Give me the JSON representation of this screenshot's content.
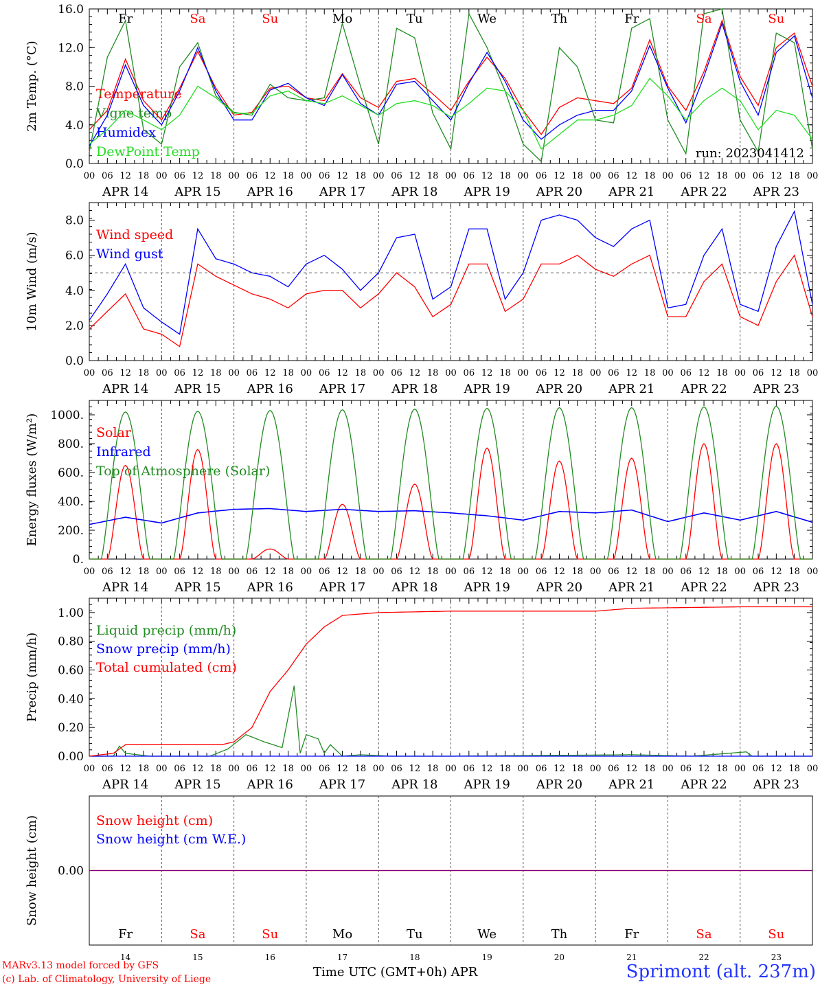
{
  "meteogram": {
    "day_names": [
      "Fr",
      "Sa",
      "Su",
      "Mo",
      "Tu",
      "We",
      "Th",
      "Fr",
      "Sa",
      "Su"
    ],
    "day_name_colors": [
      "#000000",
      "#ff0000",
      "#ff0000",
      "#000000",
      "#000000",
      "#000000",
      "#000000",
      "#000000",
      "#ff0000",
      "#ff0000"
    ],
    "date_labels": [
      "APR 14",
      "APR 15",
      "APR 16",
      "APR 17",
      "APR 18",
      "APR 19",
      "APR 20",
      "APR 21",
      "APR 22",
      "APR 23"
    ],
    "hour_labels": [
      "00",
      "06",
      "12",
      "18"
    ],
    "bottom_day_numbers": [
      "14",
      "15",
      "16",
      "17",
      "18",
      "19",
      "20",
      "21",
      "22",
      "23"
    ],
    "xlabel": "Time UTC (GMT+0h)",
    "xlabel_month": "APR",
    "credit_line_1": "MARv3.13 model forced by GFS",
    "credit_line_2": "(c) Lab. of Climatology, University of Liege",
    "station": "Sprimont (alt. 237m)",
    "colors": {
      "red": "#ff0000",
      "blue": "#0000ff",
      "green": "#228b22",
      "light_green": "#22dd22",
      "purple": "#800080",
      "grid": "#555555"
    }
  },
  "chart_data": [
    {
      "type": "line",
      "ylabel": "2m Temp. (°C)",
      "ylim": [
        0,
        16
      ],
      "yticks": [
        "0.0",
        "4.0",
        "8.0",
        "12.0",
        "16.0"
      ],
      "annotation": "run: 2023041412",
      "x_hours": [
        0,
        6,
        12,
        18,
        24,
        30,
        36,
        42,
        48,
        54,
        60,
        66,
        72,
        78,
        84,
        90,
        96,
        102,
        108,
        114,
        120,
        126,
        132,
        138,
        144,
        150,
        156,
        162,
        168,
        174,
        180,
        186,
        192,
        198,
        204,
        210,
        216,
        222,
        228,
        234,
        240
      ],
      "series": [
        {
          "name": "Temperature",
          "color": "#ff0000",
          "values": [
            3.5,
            5.5,
            10.8,
            6.5,
            4.5,
            7.8,
            11.6,
            7.8,
            5.0,
            5.3,
            7.8,
            8.0,
            6.8,
            6.5,
            9.3,
            6.8,
            5.8,
            8.5,
            8.8,
            7.2,
            5.5,
            8.5,
            11.0,
            8.8,
            5.5,
            3.0,
            5.8,
            6.8,
            6.5,
            6.2,
            7.8,
            12.8,
            8.0,
            5.5,
            9.5,
            14.8,
            9.0,
            6.0,
            12.0,
            13.5,
            8.0
          ]
        },
        {
          "name": "Vigne temp",
          "color": "#228b22",
          "values": [
            1.2,
            11.0,
            14.8,
            3.5,
            2.0,
            10.0,
            12.5,
            7.0,
            5.3,
            5.0,
            8.2,
            6.8,
            6.5,
            6.8,
            14.5,
            8.0,
            2.0,
            14.0,
            13.0,
            5.2,
            1.5,
            15.5,
            12.0,
            7.5,
            2.0,
            0.2,
            12.0,
            10.0,
            4.5,
            4.2,
            14.0,
            15.0,
            4.5,
            1.0,
            15.5,
            16.0,
            4.5,
            1.2,
            13.5,
            12.5,
            1.5
          ]
        },
        {
          "name": "Humidex",
          "color": "#0000ff",
          "values": [
            1.8,
            5.0,
            10.2,
            6.0,
            4.0,
            7.5,
            12.0,
            7.5,
            4.5,
            4.5,
            7.6,
            8.3,
            6.8,
            6.0,
            9.2,
            6.2,
            5.0,
            8.2,
            8.5,
            6.5,
            4.5,
            8.3,
            11.5,
            8.5,
            4.5,
            2.5,
            4.0,
            5.0,
            5.5,
            5.5,
            7.5,
            12.2,
            7.8,
            4.2,
            9.0,
            14.5,
            8.5,
            5.0,
            11.5,
            13.2,
            6.8
          ]
        },
        {
          "name": "DewPoint Temp",
          "color": "#22dd22",
          "values": [
            2.0,
            3.5,
            5.5,
            4.5,
            3.5,
            5.0,
            8.0,
            6.8,
            5.2,
            5.2,
            7.0,
            7.5,
            6.5,
            6.2,
            7.0,
            6.0,
            5.0,
            6.2,
            6.5,
            6.0,
            4.8,
            6.2,
            7.8,
            7.5,
            5.5,
            1.5,
            3.0,
            4.5,
            4.5,
            5.0,
            6.0,
            8.8,
            7.0,
            4.5,
            6.5,
            7.8,
            6.5,
            3.5,
            5.5,
            5.0,
            2.5
          ]
        }
      ]
    },
    {
      "type": "line",
      "ylabel": "10m Wind (m/s)",
      "ylim": [
        0,
        9
      ],
      "yticks": [
        "0.0",
        "2.0",
        "4.0",
        "6.0",
        "8.0"
      ],
      "reference_line": 5.0,
      "x_hours": [
        0,
        6,
        12,
        18,
        24,
        30,
        36,
        42,
        48,
        54,
        60,
        66,
        72,
        78,
        84,
        90,
        96,
        102,
        108,
        114,
        120,
        126,
        132,
        138,
        144,
        150,
        156,
        162,
        168,
        174,
        180,
        186,
        192,
        198,
        204,
        210,
        216,
        222,
        228,
        234,
        240
      ],
      "series": [
        {
          "name": "Wind speed",
          "color": "#ff0000",
          "values": [
            1.8,
            2.8,
            3.8,
            1.8,
            1.5,
            0.8,
            5.5,
            4.8,
            4.3,
            3.8,
            3.5,
            3.0,
            3.8,
            4.0,
            4.0,
            3.0,
            3.8,
            5.0,
            4.2,
            2.5,
            3.2,
            5.5,
            5.5,
            2.8,
            3.5,
            5.5,
            5.5,
            6.0,
            5.2,
            4.8,
            5.5,
            6.0,
            2.5,
            2.5,
            4.5,
            5.5,
            2.5,
            2.0,
            4.5,
            6.0,
            2.5
          ]
        },
        {
          "name": "Wind gust",
          "color": "#0000ff",
          "values": [
            2.3,
            3.8,
            5.5,
            3.0,
            2.2,
            1.5,
            7.5,
            5.8,
            5.5,
            5.0,
            4.8,
            4.2,
            5.5,
            6.0,
            5.2,
            4.0,
            5.0,
            7.0,
            7.2,
            3.5,
            4.2,
            7.5,
            7.5,
            3.5,
            5.0,
            8.0,
            8.3,
            8.0,
            7.0,
            6.5,
            7.5,
            8.0,
            3.0,
            3.2,
            6.0,
            7.5,
            3.2,
            2.8,
            6.5,
            8.5,
            3.2
          ]
        }
      ]
    },
    {
      "type": "line",
      "ylabel": "Energy fluxes (W/m²)",
      "ylim": [
        0,
        1100
      ],
      "yticks": [
        "0.",
        "200.",
        "400.",
        "600.",
        "800.",
        "1000."
      ],
      "series": [
        {
          "name": "Solar",
          "color": "#ff0000",
          "day_peaks": [
            650,
            760,
            70,
            380,
            520,
            770,
            680,
            700,
            800,
            800
          ]
        },
        {
          "name": "Infrared",
          "color": "#0000ff",
          "x_hours": [
            0,
            12,
            24,
            36,
            48,
            60,
            72,
            84,
            96,
            108,
            120,
            132,
            144,
            156,
            168,
            180,
            192,
            204,
            216,
            228,
            240
          ],
          "values": [
            240,
            290,
            250,
            320,
            345,
            350,
            330,
            345,
            330,
            335,
            320,
            300,
            270,
            330,
            320,
            340,
            260,
            320,
            270,
            330,
            255
          ]
        },
        {
          "name": "Top of Atmosphere (Solar)",
          "color": "#228b22",
          "day_peaks": [
            1020,
            1025,
            1030,
            1035,
            1040,
            1045,
            1050,
            1050,
            1055,
            1060
          ]
        }
      ]
    },
    {
      "type": "line",
      "ylabel": "Precip (mm/h)",
      "ylim": [
        0,
        1.1
      ],
      "yticks": [
        "0.00",
        "0.20",
        "0.40",
        "0.60",
        "0.80",
        "1.00"
      ],
      "series": [
        {
          "name": "Liquid precip (mm/h)",
          "color": "#228b22",
          "x_hours": [
            0,
            8,
            10,
            12,
            20,
            40,
            46,
            52,
            58,
            64,
            68,
            70,
            72,
            76,
            78,
            80,
            84,
            90,
            100,
            120,
            180,
            200,
            218,
            220,
            240
          ],
          "values": [
            0,
            0,
            0.07,
            0.02,
            0,
            0,
            0.05,
            0.15,
            0.1,
            0.06,
            0.49,
            0.02,
            0.15,
            0.12,
            0.02,
            0.08,
            0,
            0.01,
            0,
            0,
            0.01,
            0,
            0.03,
            0,
            0
          ]
        },
        {
          "name": "Snow precip (mm/h)",
          "color": "#0000ff",
          "x_hours": [
            0,
            240
          ],
          "values": [
            0,
            0
          ]
        },
        {
          "name": "Total cumulated (cm)",
          "color": "#ff0000",
          "x_hours": [
            0,
            8,
            12,
            20,
            44,
            48,
            54,
            60,
            66,
            72,
            78,
            84,
            96,
            120,
            168,
            180,
            216,
            240
          ],
          "values": [
            0,
            0.02,
            0.08,
            0.08,
            0.08,
            0.1,
            0.2,
            0.45,
            0.6,
            0.78,
            0.9,
            0.98,
            1.0,
            1.01,
            1.01,
            1.03,
            1.04,
            1.04
          ]
        }
      ]
    },
    {
      "type": "line",
      "ylabel": "Snow height (cm)",
      "yticks": [
        "0.00"
      ],
      "series": [
        {
          "name": "Snow height (cm)",
          "color": "#ff0000",
          "x_hours": [
            0,
            240
          ],
          "values": [
            0,
            0
          ]
        },
        {
          "name": "Snow height (cm W.E.)",
          "color": "#0000ff",
          "x_hours": [
            0,
            240
          ],
          "values": [
            0,
            0
          ]
        }
      ]
    }
  ]
}
